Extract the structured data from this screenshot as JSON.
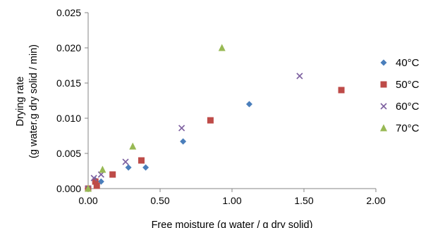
{
  "chart_data": {
    "type": "scatter",
    "title": "",
    "xlabel": "Free moisture (g water / g dry solid)",
    "ylabel_lines": [
      "Drying rate",
      "(g water.g dry solid / min)"
    ],
    "xlim": [
      0,
      2.0
    ],
    "ylim": [
      0,
      0.025
    ],
    "x_ticks": [
      "0.00",
      "0.50",
      "1.00",
      "1.50",
      "2.00"
    ],
    "x_tick_values": [
      0,
      0.5,
      1.0,
      1.5,
      2.0
    ],
    "y_ticks": [
      "0.000",
      "0.005",
      "0.010",
      "0.015",
      "0.020",
      "0.025"
    ],
    "y_tick_values": [
      0,
      0.005,
      0.01,
      0.015,
      0.02,
      0.025
    ],
    "grid": false,
    "legend_position": "right",
    "series": [
      {
        "name": "40°C",
        "marker": "diamond",
        "color": "#4a7ebb",
        "points": [
          [
            0.0,
            0.0
          ],
          [
            0.05,
            0.0012
          ],
          [
            0.09,
            0.001
          ],
          [
            0.28,
            0.003
          ],
          [
            0.4,
            0.003
          ],
          [
            0.66,
            0.0067
          ],
          [
            1.12,
            0.012
          ]
        ]
      },
      {
        "name": "50°C",
        "marker": "square",
        "color": "#be4b48",
        "points": [
          [
            0.0,
            0.0
          ],
          [
            0.06,
            0.0004
          ],
          [
            0.05,
            0.001
          ],
          [
            0.17,
            0.002
          ],
          [
            0.37,
            0.004
          ],
          [
            0.85,
            0.0097
          ],
          [
            1.76,
            0.014
          ]
        ]
      },
      {
        "name": "60°C",
        "marker": "x",
        "color": "#7d60a0",
        "points": [
          [
            0.0,
            0.0
          ],
          [
            0.04,
            0.0015
          ],
          [
            0.09,
            0.002
          ],
          [
            0.26,
            0.0038
          ],
          [
            0.65,
            0.0086
          ],
          [
            1.47,
            0.016
          ]
        ]
      },
      {
        "name": "70°C",
        "marker": "triangle",
        "color": "#98b954",
        "points": [
          [
            0.0,
            0.0
          ],
          [
            0.1,
            0.0027
          ],
          [
            0.31,
            0.006
          ],
          [
            0.93,
            0.02
          ]
        ]
      }
    ]
  }
}
